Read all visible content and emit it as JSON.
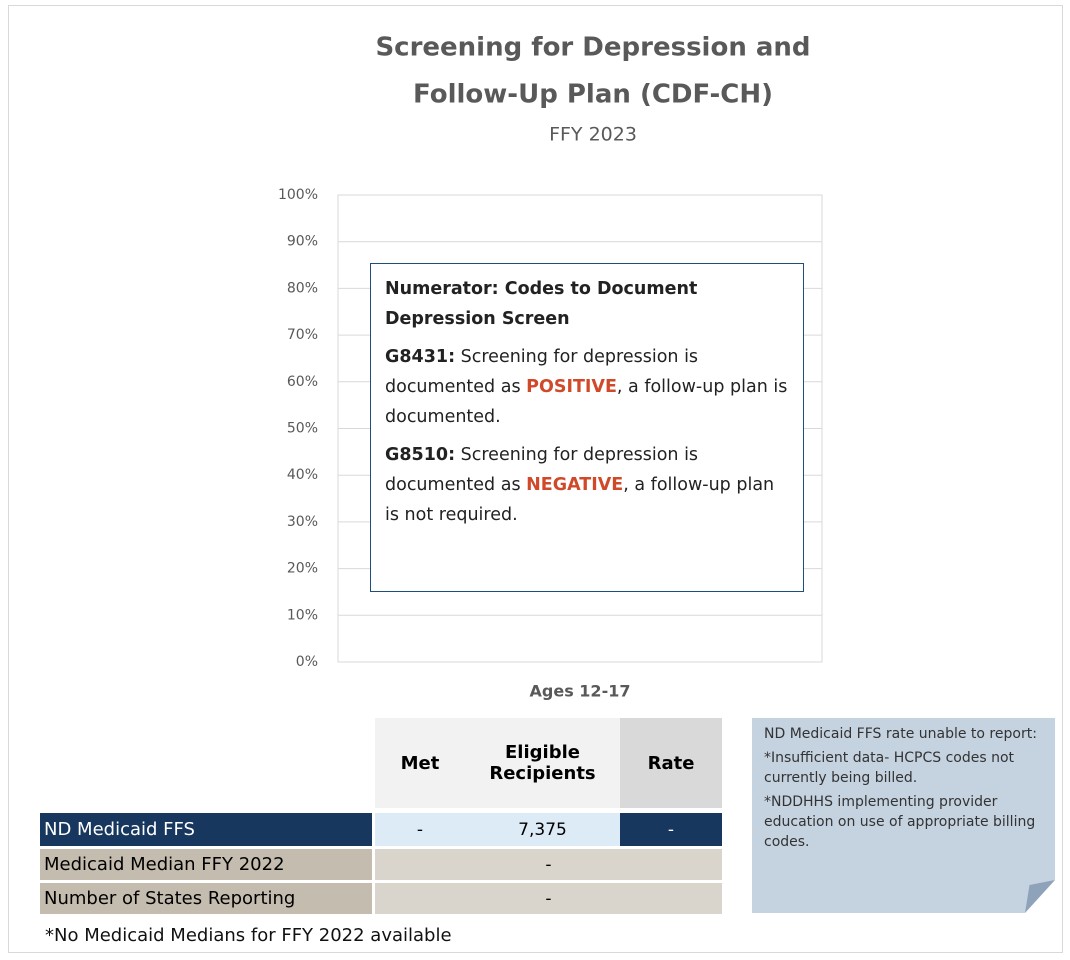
{
  "chart_data": {
    "type": "bar",
    "title": "Screening for Depression and Follow-Up Plan (CDF-CH)",
    "subtitle": "FFY 2023",
    "categories": [
      "Ages 12-17"
    ],
    "ylim": [
      0,
      100
    ],
    "yticks": [
      {
        "value": 0,
        "label": "0%"
      },
      {
        "value": 10,
        "label": "10%"
      },
      {
        "value": 20,
        "label": "20%"
      },
      {
        "value": 30,
        "label": "30%"
      },
      {
        "value": 40,
        "label": "40%"
      },
      {
        "value": 50,
        "label": "50%"
      },
      {
        "value": 60,
        "label": "60%"
      },
      {
        "value": 70,
        "label": "70%"
      },
      {
        "value": 80,
        "label": "80%"
      },
      {
        "value": 90,
        "label": "90%"
      },
      {
        "value": 100,
        "label": "100%"
      }
    ],
    "grid": true
  },
  "annotation": {
    "heading": "Numerator: Codes to Document Depression Screen",
    "items": [
      {
        "code": "G8431:",
        "before": " Screening for depression is documented as ",
        "highlight": "POSITIVE",
        "after": ", a follow-up plan is documented."
      },
      {
        "code": "G8510:",
        "before": " Screening for depression is documented as ",
        "highlight": "NEGATIVE",
        "after": ", a follow-up plan is not required."
      }
    ]
  },
  "table": {
    "columns": [
      "Met",
      "Eligible Recipients",
      "Rate"
    ],
    "rows": [
      {
        "label": "ND Medicaid FFS",
        "cells": [
          "-",
          "7,375",
          "-"
        ]
      },
      {
        "label": "Medicaid Median FFY 2022",
        "cells": [
          "-"
        ]
      },
      {
        "label": "Number of States Reporting",
        "cells": [
          "-"
        ]
      }
    ]
  },
  "side_note": [
    "ND Medicaid FFS rate unable to report:",
    "*Insufficient data- HCPCS codes not currently being billed.",
    "*NDDHHS implementing provider education on use of appropriate billing codes."
  ],
  "footnote": "*No Medicaid Medians for FFY 2022 available"
}
